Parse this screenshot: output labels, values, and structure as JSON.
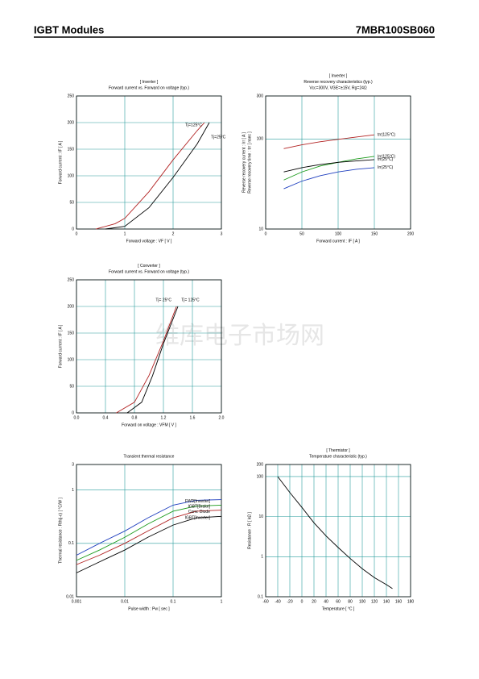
{
  "header": {
    "left": "IGBT Modules",
    "right": "7MBR100SB060"
  },
  "watermark": "维库电子市场网",
  "chart_data": [
    {
      "type": "line",
      "title": "[ Inverter ]",
      "subtitle": "Forward current  vs.  Forward on voltage  (typ.)",
      "xlabel": "Forward voltage  :  VF  [ V ]",
      "ylabel": "Forward current  :  IF  [ A ]",
      "xlim": [
        0,
        3
      ],
      "xticks": [
        0,
        1,
        2,
        3
      ],
      "ylim": [
        0,
        250
      ],
      "yticks": [
        0,
        50,
        100,
        150,
        200,
        250
      ],
      "grid": true,
      "grid_color": "#2a9d9d",
      "series": [
        {
          "name": "Tj=125°C",
          "color": "#b22222",
          "x": [
            0.4,
            0.8,
            1.0,
            1.5,
            2.0,
            2.5,
            2.65
          ],
          "values": [
            0,
            10,
            20,
            70,
            130,
            185,
            200
          ]
        },
        {
          "name": "Tj=25°C",
          "color": "#000000",
          "x": [
            0.6,
            1.0,
            1.5,
            2.0,
            2.5,
            2.75
          ],
          "values": [
            0,
            5,
            40,
            97,
            160,
            200
          ]
        }
      ]
    },
    {
      "type": "line",
      "title": "[ Inverter ]",
      "subtitle": "Reverse recovery characteristics  (typ.)",
      "note": "Vcc=300V, VGE=±15V, Rg=24Ω",
      "xlabel": "Forward current  :  IF  [ A ]",
      "ylabel": [
        "Reverse recovery current  :  Irr  [ A ]",
        "Reverse recovery time  :  trr  [ nsec ]"
      ],
      "xlim": [
        0,
        200
      ],
      "xticks": [
        0,
        50,
        100,
        150,
        200
      ],
      "ylim": [
        10,
        300
      ],
      "yticks": [
        10,
        100,
        300
      ],
      "ylog": true,
      "grid": true,
      "grid_color": "#2a9d9d",
      "series": [
        {
          "name": "trr(125°C)",
          "color": "#b22222",
          "x": [
            25,
            50,
            75,
            100,
            125,
            150
          ],
          "values": [
            78,
            86,
            93,
            99,
            105,
            111
          ]
        },
        {
          "name": "Irr(125°C)",
          "color": "#1a9a1a",
          "x": [
            25,
            50,
            75,
            100,
            125,
            150
          ],
          "values": [
            35,
            43,
            50,
            55,
            60,
            64
          ]
        },
        {
          "name": "trr(25°C)",
          "color": "#000000",
          "x": [
            25,
            50,
            75,
            100,
            125,
            150
          ],
          "values": [
            43,
            48,
            52,
            55,
            57,
            59
          ]
        },
        {
          "name": "Irr(25°C)",
          "color": "#1f3fbf",
          "x": [
            25,
            50,
            75,
            100,
            125,
            150
          ],
          "values": [
            28,
            34,
            39,
            43,
            46,
            48
          ]
        }
      ]
    },
    {
      "type": "line",
      "title": "[ Converter ]",
      "subtitle": "Forward current  vs.  Forward on voltage  (typ.)",
      "xlabel": "Forward on voltage  :  VFM  [ V ]",
      "ylabel": "Forward current  :  IF  [ A ]",
      "xlim": [
        0,
        2
      ],
      "xticks": [
        {
          "value": 0,
          "label": "0.0"
        },
        0.4,
        0.8,
        1.2,
        1.6,
        {
          "value": 2,
          "label": "2.0"
        }
      ],
      "ylim": [
        0,
        250
      ],
      "yticks": [
        0,
        50,
        100,
        150,
        200,
        250
      ],
      "grid": true,
      "grid_color": "#2a9d9d",
      "series": [
        {
          "name": "Tj= 25°C",
          "color": "#000000",
          "x": [
            0.7,
            0.9,
            1.05,
            1.2,
            1.4
          ],
          "values": [
            0,
            20,
            70,
            130,
            200
          ]
        },
        {
          "name": "Tj= 125°C",
          "color": "#b22222",
          "x": [
            0.55,
            0.8,
            1.0,
            1.2,
            1.38
          ],
          "values": [
            0,
            20,
            70,
            135,
            200
          ]
        }
      ]
    },
    {
      "type": "line",
      "title": "Transient thermal resistance",
      "xlabel": "Pulse width  :  Pw  [ sec ]",
      "ylabel": "Thermal resistance  :  Rth(j-c)  [ °C/W ]",
      "xlim": [
        0.001,
        1
      ],
      "xticks": [
        0.001,
        0.01,
        0.1,
        1
      ],
      "xlog": true,
      "ylim": [
        0.01,
        3
      ],
      "yticks": [
        0.01,
        0.1,
        1,
        3
      ],
      "ylog": true,
      "grid": true,
      "grid_color": "#2a9d9d",
      "series": [
        {
          "name": "FWD[Inverter]",
          "color": "#1f3fbf",
          "x": [
            0.001,
            0.003,
            0.01,
            0.03,
            0.1,
            0.3,
            1
          ],
          "values": [
            0.06,
            0.1,
            0.17,
            0.3,
            0.52,
            0.64,
            0.66
          ]
        },
        {
          "name": "IGBT[Brake]",
          "color": "#1a9a1a",
          "x": [
            0.001,
            0.003,
            0.01,
            0.03,
            0.1,
            0.3,
            1
          ],
          "values": [
            0.048,
            0.075,
            0.13,
            0.23,
            0.4,
            0.5,
            0.52
          ]
        },
        {
          "name": "Conv. Diode",
          "color": "#b22222",
          "x": [
            0.001,
            0.003,
            0.01,
            0.03,
            0.1,
            0.3,
            1
          ],
          "values": [
            0.04,
            0.06,
            0.1,
            0.17,
            0.3,
            0.4,
            0.42
          ]
        },
        {
          "name": "IGBT[Inverter]",
          "color": "#000000",
          "x": [
            0.001,
            0.003,
            0.01,
            0.03,
            0.1,
            0.3,
            1
          ],
          "values": [
            0.028,
            0.045,
            0.075,
            0.13,
            0.22,
            0.3,
            0.32
          ]
        }
      ]
    },
    {
      "type": "line",
      "title": "[ Thermistor ]",
      "subtitle": "Temperature characteristic  (typ.)",
      "xlabel": "Temperature  [  °C ]",
      "ylabel": "Resistance  :  R  [ kΩ ]",
      "xlim": [
        -60,
        180
      ],
      "xticks": [
        -60,
        -40,
        -20,
        0,
        20,
        40,
        60,
        80,
        100,
        120,
        140,
        160,
        180
      ],
      "ylim": [
        0.1,
        200
      ],
      "yticks": [
        0.1,
        1,
        10,
        100,
        200
      ],
      "ylog": true,
      "grid": true,
      "grid_color": "#2a9d9d",
      "series": [
        {
          "color": "#000000",
          "x": [
            -40,
            -20,
            0,
            20,
            40,
            60,
            80,
            100,
            120,
            140,
            150
          ],
          "values": [
            100,
            40,
            17,
            7,
            3.3,
            1.7,
            0.9,
            0.5,
            0.3,
            0.2,
            0.16
          ]
        }
      ]
    }
  ]
}
